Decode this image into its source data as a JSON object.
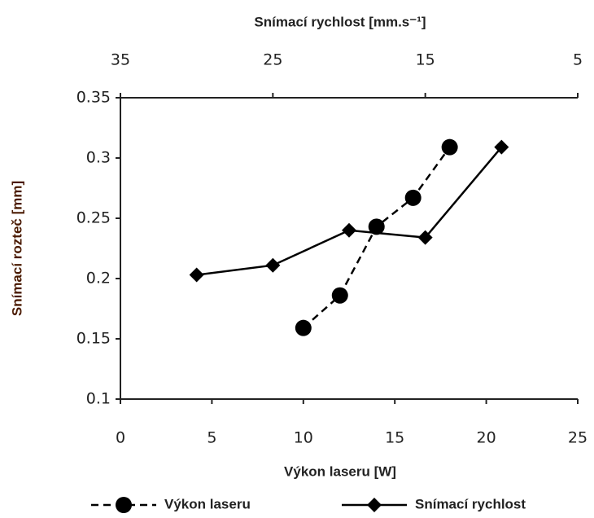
{
  "chart_data": {
    "type": "line",
    "x2_label": "Snímací rychlost [mm.s⁻¹]",
    "xlabel": "Výkon laseru [W]",
    "ylabel": "Snímací rozteč [mm]",
    "xlim": [
      0,
      25
    ],
    "xticks": [
      0,
      5,
      10,
      15,
      20,
      25
    ],
    "x2lim": [
      35,
      5
    ],
    "x2ticks": [
      35,
      25,
      15,
      5
    ],
    "ylim": [
      0.1,
      0.35
    ],
    "yticks": [
      0.1,
      0.15,
      0.2,
      0.25,
      0.3,
      0.35
    ],
    "legend": "bottom",
    "series": [
      {
        "name": "Výkon laseru",
        "color": "#000000",
        "style": "dashed",
        "marker": "circle",
        "x": [
          10,
          12,
          14,
          16,
          18
        ],
        "values": [
          0.159,
          0.186,
          0.243,
          0.267,
          0.309
        ]
      },
      {
        "name": "Snímací rychlost",
        "color": "#000000",
        "style": "solid",
        "marker": "diamond",
        "axis": "x2",
        "x": [
          30,
          25,
          20,
          15,
          10
        ],
        "values": [
          0.203,
          0.211,
          0.24,
          0.234,
          0.309
        ]
      }
    ]
  }
}
